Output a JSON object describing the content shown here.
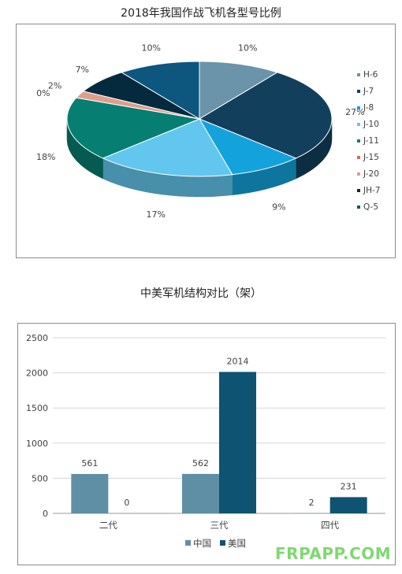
{
  "charts": [
    {
      "title": "2018年我国作战飞机各型号比例",
      "chart_data": {
        "type": "pie",
        "title": "2018年我国作战飞机各型号比例",
        "labels": [
          "H-6",
          "J-7",
          "J-8",
          "J-10",
          "J-11",
          "J-15",
          "J-20",
          "JH-7",
          "Q-5"
        ],
        "values": [
          10,
          27,
          9,
          17,
          18,
          0,
          2,
          7,
          10
        ],
        "data_labels": [
          "10%",
          "27%",
          "9%",
          "17%",
          "18%",
          "0%",
          "2%",
          "7%",
          "10%"
        ],
        "colors": [
          "#6b93a9",
          "#123f5c",
          "#14a2dc",
          "#62c6ee",
          "#077e72",
          "#d06b5f",
          "#df9e8c",
          "#062a3d",
          "#0d567e"
        ],
        "legend": "right"
      }
    },
    {
      "title": "中美军机结构对比（架）",
      "chart_data": {
        "type": "bar",
        "title": "中美军机结构对比（架）",
        "categories": [
          "二代",
          "三代",
          "四代"
        ],
        "series": [
          {
            "name": "中国",
            "values": [
              561,
              562,
              2
            ],
            "color": "#5f8fa5"
          },
          {
            "name": "美国",
            "values": [
              0,
              2014,
              231
            ],
            "color": "#0e5472"
          }
        ],
        "ylim": [
          0,
          2500
        ],
        "yticks": [
          "0",
          "500",
          "1000",
          "1500",
          "2000",
          "2500"
        ],
        "grid": true,
        "legend": "bottom"
      }
    }
  ],
  "watermark": "FRPAPP.COM"
}
